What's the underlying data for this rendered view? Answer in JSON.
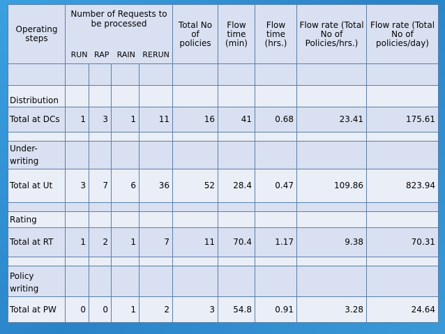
{
  "header": {
    "operating_steps": "Operating steps",
    "requests_group": "Number of Requests to be processed",
    "sub_cols": [
      "RUN",
      "RAP",
      "RAIN",
      "RERUN"
    ],
    "total_policies": "Total No of policies",
    "flow_time_min": "Flow time (min)",
    "flow_time_hrs": "Flow time (hrs.)",
    "flow_rate_hr": "Flow rate (Total No of Policies/hrs.)",
    "flow_rate_day": "Flow rate (Total No of policies/day)"
  },
  "sections": [
    {
      "title": "Distribution",
      "total_label": "Total at DCs",
      "values": [
        "1",
        "3",
        "1",
        "11",
        "16",
        "41",
        "0.68",
        "23.41",
        "175.61"
      ]
    },
    {
      "title": "Under-writing",
      "total_label": "Total at Ut",
      "values": [
        "3",
        "7",
        "6",
        "36",
        "52",
        "28.4",
        "0.47",
        "109.86",
        "823.94"
      ]
    },
    {
      "title": "Rating",
      "total_label": "Total at RT",
      "values": [
        "1",
        "2",
        "1",
        "7",
        "11",
        "70.4",
        "1.17",
        "9.38",
        "70.31"
      ]
    },
    {
      "title": "Policy writing",
      "total_label": "Total at PW",
      "values": [
        "0",
        "0",
        "1",
        "2",
        "3",
        "54.8",
        "0.91",
        "3.28",
        "24.64"
      ]
    }
  ]
}
